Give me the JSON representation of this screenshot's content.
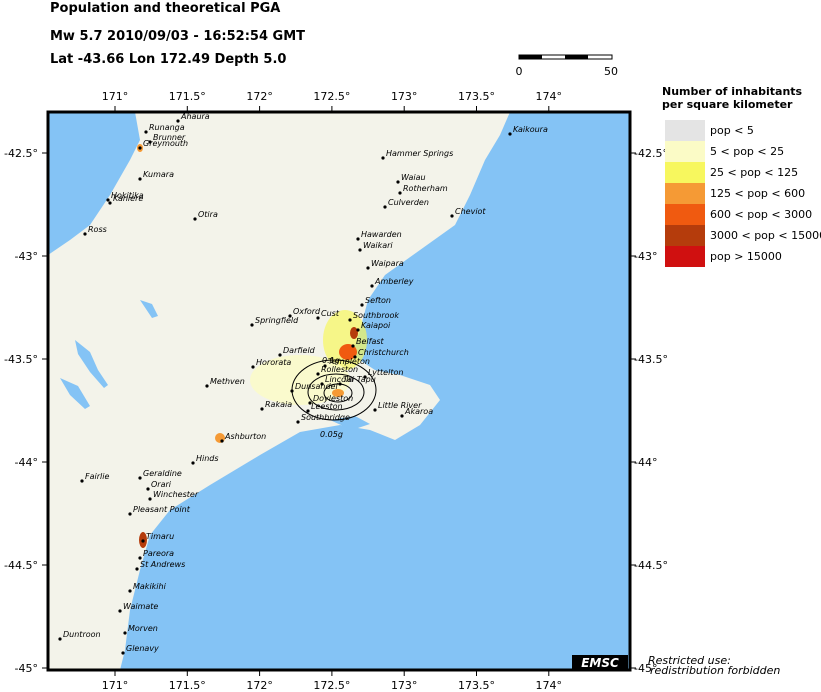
{
  "header": {
    "title": "Population and theoretical PGA",
    "event": "Mw 5.7  2010/09/03 - 16:52:54 GMT",
    "location": "Lat -43.66    Lon 172.49    Depth  5.0"
  },
  "scale_bar": {
    "labels": [
      "0",
      "50"
    ]
  },
  "map": {
    "xticks": [
      {
        "value": 171,
        "label": "171°"
      },
      {
        "value": 171.5,
        "label": "171.5°"
      },
      {
        "value": 172,
        "label": "172°"
      },
      {
        "value": 172.5,
        "label": "172.5°"
      },
      {
        "value": 173,
        "label": "173°"
      },
      {
        "value": 173.5,
        "label": "173.5°"
      },
      {
        "value": 174,
        "label": "174°"
      }
    ],
    "yticks": [
      {
        "value": -42.5,
        "label": "-42.5°"
      },
      {
        "value": -43,
        "label": "-43°"
      },
      {
        "value": -43.5,
        "label": "-43.5°"
      },
      {
        "value": -44,
        "label": "-44°"
      },
      {
        "value": -44.5,
        "label": "-44.5°"
      },
      {
        "value": -45,
        "label": "-45°"
      }
    ],
    "towns": [
      "Ahaura",
      "Runanga",
      "Brunner",
      "Greymouth",
      "Kumara",
      "Hokitika",
      "Kaniere",
      "Ross",
      "Otira",
      "Hammer Springs",
      "Waiau",
      "Rotherham",
      "Culverden",
      "Cheviot",
      "Kaikoura",
      "Hawarden",
      "Waikari",
      "Waipara",
      "Amberley",
      "Sefton",
      "Oxford",
      "Cust",
      "Southbrook",
      "Kaiapoi",
      "Springfield",
      "Darfield",
      "Belfast",
      "Christchurch",
      "Hororata",
      "Methven",
      "Templeton",
      "Rolleston",
      "Lyttelton",
      "Lincoln",
      "Tai Tapu",
      "Dunsandel",
      "Rakaia",
      "Doyleston",
      "Leeston",
      "Southbridge",
      "Little River",
      "Akaroa",
      "Ashburton",
      "Hinds",
      "Fairlie",
      "Geraldine",
      "Orari",
      "Winchester",
      "Pleasant Point",
      "Timaru",
      "Pareora",
      "St Andrews",
      "Makikihi",
      "Waimate",
      "Morven",
      "Glenavy",
      "Duntroon"
    ],
    "contour_labels": [
      "0.1g",
      "0.05g"
    ]
  },
  "legend": {
    "title_lines": [
      "Number of inhabitants",
      "per square kilometer"
    ],
    "items": [
      {
        "label": "pop < 5",
        "color": "#e4e4e4"
      },
      {
        "label": "5 < pop < 25",
        "color": "#fbfbc6"
      },
      {
        "label": "25 < pop < 125",
        "color": "#f7f75e"
      },
      {
        "label": "125 < pop < 600",
        "color": "#f59a35"
      },
      {
        "label": "600 < pop < 3000",
        "color": "#f05a10"
      },
      {
        "label": "3000 < pop < 15000",
        "color": "#b53c0c"
      },
      {
        "label": "pop > 15000",
        "color": "#d01010"
      }
    ]
  },
  "footer": {
    "notice": [
      "Restricted use:",
      "redistribution forbidden"
    ],
    "logo": "EMSC"
  }
}
